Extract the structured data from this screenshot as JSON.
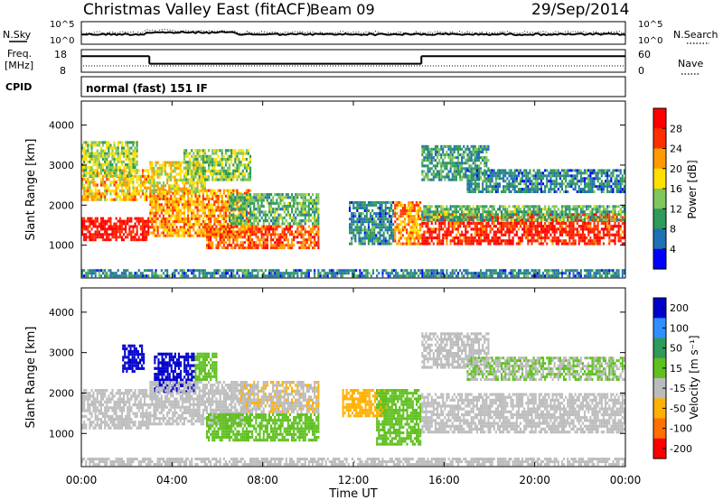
{
  "header": {
    "title": "Christmas Valley East (fitACF)",
    "beam": "Beam 09",
    "date": "29/Sep/2014",
    "mode": "normal (fast) 151 IF"
  },
  "labels": {
    "nsky": "N.Sky",
    "nsearch": "N.Search",
    "freq": "Freq.",
    "freq_unit": "[MHz]",
    "nave": "Nave",
    "cpid": "CPID",
    "ylabel": "Slant Range [km]",
    "xlabel": "Time UT",
    "power_cbar_label": "Power [dB]",
    "velocity_cbar_label": "Velocity [m s⁻¹]"
  },
  "chart_data": [
    {
      "type": "line",
      "panel": "noise",
      "left_ticks": [
        "10^5",
        "10^0"
      ],
      "right_ticks": [
        "10^5",
        "10^0"
      ],
      "series": [
        {
          "name": "N.Sky",
          "style": "solid"
        },
        {
          "name": "N.Search",
          "style": "dotted"
        }
      ]
    },
    {
      "type": "line",
      "panel": "frequency",
      "left_ticks": [
        "18",
        "8"
      ],
      "right_ticks": [
        "60",
        "0"
      ],
      "freq_segments": [
        {
          "x_start": 0.0,
          "x_end": 3.0,
          "y": 15.5
        },
        {
          "x_start": 3.0,
          "x_end": 15.0,
          "y": 11.5
        },
        {
          "x_start": 15.0,
          "x_end": 24.0,
          "y": 15.5
        }
      ],
      "series": [
        {
          "name": "Freq.",
          "style": "solid"
        },
        {
          "name": "Nave",
          "style": "dotted"
        }
      ]
    },
    {
      "type": "heatmap",
      "panel": "power",
      "x_ticks": [
        "00:00",
        "04:00",
        "08:00",
        "12:00",
        "16:00",
        "20:00",
        "00:00"
      ],
      "y_ticks": [
        "1000",
        "2000",
        "3000",
        "4000"
      ],
      "xlim": [
        0,
        24
      ],
      "ylim": [
        180,
        4600
      ],
      "colorbar": {
        "ticks": [
          "28",
          "24",
          "20",
          "16",
          "12",
          "8",
          "4"
        ],
        "range": [
          0,
          32
        ],
        "colors": [
          "#0000ff",
          "#1f6fb4",
          "#2f9a5a",
          "#7fc65c",
          "#ffe000",
          "#ff9a00",
          "#ff3000",
          "#ff0000"
        ]
      },
      "regions": [
        {
          "x": [
            0.0,
            3.0
          ],
          "y": [
            1100,
            1700
          ],
          "value": 29
        },
        {
          "x": [
            0.0,
            3.0
          ],
          "y": [
            2100,
            2900
          ],
          "value": 20
        },
        {
          "x": [
            0.0,
            2.5
          ],
          "y": [
            2700,
            3600
          ],
          "value": 15
        },
        {
          "x": [
            3.0,
            7.5
          ],
          "y": [
            1200,
            2400
          ],
          "value": 22
        },
        {
          "x": [
            3.0,
            5.5
          ],
          "y": [
            2300,
            3100
          ],
          "value": 18
        },
        {
          "x": [
            4.5,
            7.5
          ],
          "y": [
            2600,
            3400
          ],
          "value": 14
        },
        {
          "x": [
            5.5,
            10.5
          ],
          "y": [
            900,
            1500
          ],
          "value": 25
        },
        {
          "x": [
            6.5,
            10.5
          ],
          "y": [
            1500,
            2300
          ],
          "value": 12
        },
        {
          "x": [
            11.8,
            13.8
          ],
          "y": [
            1000,
            2100
          ],
          "value": 8
        },
        {
          "x": [
            13.8,
            15.0
          ],
          "y": [
            1000,
            2100
          ],
          "value": 22
        },
        {
          "x": [
            15.0,
            24.0
          ],
          "y": [
            1000,
            1800
          ],
          "value": 28
        },
        {
          "x": [
            15.0,
            24.0
          ],
          "y": [
            1600,
            2000
          ],
          "value": 12
        },
        {
          "x": [
            15.0,
            18.0
          ],
          "y": [
            2600,
            3500
          ],
          "value": 10
        },
        {
          "x": [
            17.0,
            24.0
          ],
          "y": [
            2300,
            2900
          ],
          "value": 8
        },
        {
          "x": [
            0.0,
            24.0
          ],
          "y": [
            200,
            400
          ],
          "value": 8
        }
      ]
    },
    {
      "type": "heatmap",
      "panel": "velocity",
      "x_ticks": [
        "00:00",
        "04:00",
        "08:00",
        "12:00",
        "16:00",
        "20:00",
        "00:00"
      ],
      "y_ticks": [
        "1000",
        "2000",
        "3000",
        "4000"
      ],
      "xlim": [
        0,
        24
      ],
      "ylim": [
        180,
        4600
      ],
      "colorbar": {
        "ticks": [
          "200",
          "100",
          "50",
          "15",
          "-15",
          "-50",
          "-100",
          "-200"
        ],
        "range": [
          -250,
          250
        ],
        "colors": [
          "#0000cc",
          "#2f8fff",
          "#2f9a5a",
          "#60c020",
          "#bbbbbb",
          "#ffb000",
          "#ff7000",
          "#ff0000"
        ]
      },
      "regions": [
        {
          "x": [
            0.0,
            3.0
          ],
          "y": [
            1100,
            2100
          ],
          "value": 0,
          "kind": "ground"
        },
        {
          "x": [
            1.8,
            2.8
          ],
          "y": [
            2500,
            3200
          ],
          "value": 220
        },
        {
          "x": [
            3.2,
            5.0
          ],
          "y": [
            2000,
            3000
          ],
          "value": 200
        },
        {
          "x": [
            5.0,
            6.0
          ],
          "y": [
            2300,
            3000
          ],
          "value": 40
        },
        {
          "x": [
            3.0,
            7.5
          ],
          "y": [
            1200,
            2300
          ],
          "value": 0,
          "kind": "ground"
        },
        {
          "x": [
            5.5,
            10.5
          ],
          "y": [
            800,
            1500
          ],
          "value": 30
        },
        {
          "x": [
            7.0,
            10.5
          ],
          "y": [
            1500,
            2300
          ],
          "value": -60
        },
        {
          "x": [
            11.5,
            13.5
          ],
          "y": [
            1400,
            2100
          ],
          "value": -80
        },
        {
          "x": [
            13.0,
            15.0
          ],
          "y": [
            700,
            2100
          ],
          "value": 30
        },
        {
          "x": [
            15.0,
            24.0
          ],
          "y": [
            1000,
            2000
          ],
          "value": 0,
          "kind": "ground"
        },
        {
          "x": [
            15.0,
            18.0
          ],
          "y": [
            2600,
            3500
          ],
          "value": -20
        },
        {
          "x": [
            17.0,
            24.0
          ],
          "y": [
            2300,
            2900
          ],
          "value": 0
        },
        {
          "x": [
            0.0,
            24.0
          ],
          "y": [
            200,
            400
          ],
          "value": -40
        }
      ]
    }
  ]
}
